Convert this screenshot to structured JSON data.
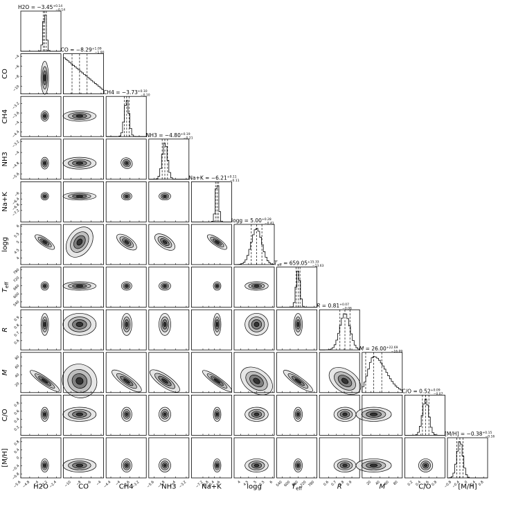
{
  "chart_data": {
    "type": "corner",
    "parameters": [
      {
        "label": "H2O",
        "title": {
          "name": "H2O",
          "median": "−3.45",
          "plus": "+0.14",
          "minus": "−0.14"
        },
        "range": [
          -5.6,
          -2.0
        ],
        "ticks": [
          -5.6,
          -4.8,
          -4.0,
          -3.2,
          -2.4
        ],
        "median": -3.45,
        "sigma": 0.14,
        "hist_shape": "normal"
      },
      {
        "label": "CO",
        "title": {
          "name": "CO",
          "median": "−8.29",
          "plus": "+1.09",
          "minus": "−1.90"
        },
        "range": [
          -11.5,
          -3.5
        ],
        "ticks": [
          -10,
          -8,
          -6,
          -4
        ],
        "median": -8.29,
        "sigma": 1.5,
        "hist_shape": "broad-decreasing"
      },
      {
        "label": "CH4",
        "title": {
          "name": "CH4",
          "median": "−3.73",
          "plus": "+0.10",
          "minus": "−0.10"
        },
        "range": [
          -4.6,
          -2.9
        ],
        "ticks": [
          -4.4,
          -4.0,
          -3.6,
          -3.2
        ],
        "median": -3.73,
        "sigma": 0.1,
        "hist_shape": "normal"
      },
      {
        "label": "NH3",
        "title": {
          "name": "NH3",
          "median": "−4.80",
          "plus": "+0.19",
          "minus": "−0.21"
        },
        "range": [
          -6.0,
          -3.0
        ],
        "ticks": [
          -5.6,
          -4.8,
          -4.0,
          -3.2
        ],
        "median": -4.8,
        "sigma": 0.2,
        "hist_shape": "normal"
      },
      {
        "label": "Na+K",
        "title": {
          "name": "Na+K",
          "median": "−6.21",
          "plus": "+0.11",
          "minus": "−0.11"
        },
        "range": [
          -8.0,
          -5.2
        ],
        "ticks": [
          -7.2,
          -6.8,
          -6.4,
          -6.0
        ],
        "median": -6.21,
        "sigma": 0.11,
        "hist_shape": "normal"
      },
      {
        "label": "logg",
        "title": {
          "name": "logg",
          "median": "5.00",
          "plus": "+0.28",
          "minus": "−0.41"
        },
        "range": [
          3.6,
          6.1
        ],
        "ticks": [
          4.0,
          4.5,
          5.0,
          5.5,
          6.0
        ],
        "median": 5.0,
        "sigma": 0.33,
        "hist_shape": "normal"
      },
      {
        "label": "T_eff",
        "title": {
          "name": "T_eff",
          "median": "659.05",
          "plus": "+15.33",
          "minus": "−13.63"
        },
        "range": [
          500,
          800
        ],
        "ticks": [
          540,
          600,
          660,
          720,
          780
        ],
        "median": 659.05,
        "sigma": 14.5,
        "hist_shape": "normal"
      },
      {
        "label": "R",
        "title": {
          "name": "R",
          "median": "0.81",
          "plus": "+0.07",
          "minus": "−0.06"
        },
        "range": [
          0.48,
          1.0
        ],
        "ticks": [
          0.6,
          0.7,
          0.8,
          0.9
        ],
        "median": 0.81,
        "sigma": 0.065,
        "hist_shape": "normal"
      },
      {
        "label": "M",
        "title": {
          "name": "M",
          "median": "26.00",
          "plus": "+22.69",
          "minus": "−16.09"
        },
        "range": [
          0,
          90
        ],
        "ticks": [
          20,
          40,
          60,
          80
        ],
        "median": 26.0,
        "sigma": 18.0,
        "hist_shape": "skewed"
      },
      {
        "label": "C/O",
        "title": {
          "name": "C/O",
          "median": "0.52",
          "plus": "+0.09",
          "minus": "−0.07"
        },
        "range": [
          0.0,
          1.0
        ],
        "ticks": [
          0.2,
          0.4,
          0.6,
          0.8
        ],
        "median": 0.52,
        "sigma": 0.08,
        "hist_shape": "normal"
      },
      {
        "label": "[M/H]",
        "title": {
          "name": "[M/H]",
          "median": "−0.38",
          "plus": "+0.15",
          "minus": "−0.16"
        },
        "range": [
          -1.0,
          1.0
        ],
        "ticks": [
          -0.8,
          -0.4,
          0.0,
          0.4,
          0.8
        ],
        "median": -0.38,
        "sigma": 0.15,
        "hist_shape": "normal"
      }
    ],
    "quantiles": [
      0.16,
      0.5,
      0.84
    ]
  }
}
